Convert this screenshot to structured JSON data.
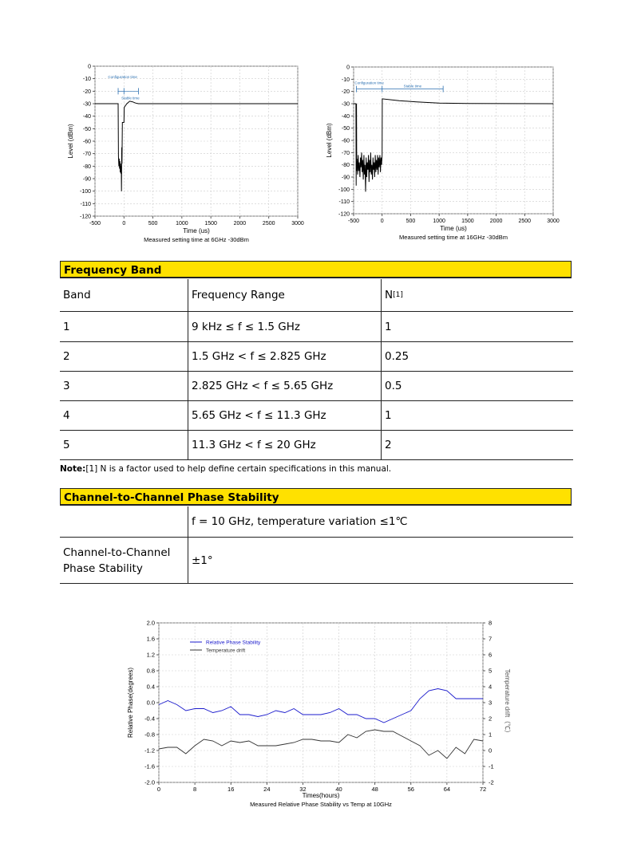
{
  "chart_data": [
    {
      "type": "line",
      "title": "Measured setting time at 6GHz -30dBm",
      "xlabel": "Time (us)",
      "ylabel": "Level (dBm)",
      "xlim": [
        -500,
        3000
      ],
      "ylim": [
        -120,
        0
      ],
      "xticks": [
        -500,
        0,
        500,
        1000,
        1500,
        2000,
        2500,
        3000
      ],
      "yticks": [
        0,
        -10,
        -20,
        -30,
        -40,
        -50,
        -60,
        -70,
        -80,
        -90,
        -100,
        -110,
        -120
      ],
      "grid": true,
      "annotations": {
        "config": "Configuration time",
        "stable": "Stable time",
        "config_range": [
          -100,
          0
        ],
        "stable_range": [
          0,
          250
        ],
        "level": -20
      },
      "series": [
        {
          "color": "#000000",
          "x": [
            -500,
            -100,
            -95,
            -88,
            -82,
            -76,
            -70,
            -64,
            -58,
            -52,
            -46,
            -42,
            -38,
            -34,
            -28,
            -22,
            0,
            5,
            20,
            50,
            100,
            150,
            200,
            250,
            300,
            3000
          ],
          "y": [
            -30,
            -30,
            -72,
            -80,
            -74,
            -82,
            -76,
            -85,
            -78,
            -86,
            -80,
            -100,
            -65,
            -78,
            -45,
            -45,
            -45,
            -33,
            -32,
            -30,
            -28,
            -28.5,
            -29.5,
            -30,
            -30,
            -30
          ]
        }
      ]
    },
    {
      "type": "line",
      "title": "Measured setting time at 16GHz -30dBm",
      "xlabel": "Time (us)",
      "ylabel": "Level (dBm)",
      "xlim": [
        -500,
        3000
      ],
      "ylim": [
        -120,
        0
      ],
      "xticks": [
        -500,
        0,
        500,
        1000,
        1500,
        2000,
        2500,
        3000
      ],
      "yticks": [
        0,
        -10,
        -20,
        -30,
        -40,
        -50,
        -60,
        -70,
        -80,
        -90,
        -100,
        -110,
        -120
      ],
      "grid": true,
      "annotations": {
        "config": "Configuration time",
        "stable": "Stable time",
        "config_range": [
          -450,
          0
        ],
        "stable_range": [
          0,
          1070
        ],
        "level": -18
      },
      "series": [
        {
          "color": "#000000",
          "x": [
            -500,
            -460,
            -455,
            -450,
            -445,
            -440,
            -430,
            -420,
            -410,
            -400,
            -390,
            -380,
            -370,
            -360,
            -350,
            -340,
            -330,
            -320,
            -310,
            -300,
            -290,
            -280,
            -270,
            -260,
            -250,
            -240,
            -230,
            -220,
            -210,
            -200,
            -190,
            -180,
            -170,
            -160,
            -150,
            -140,
            -130,
            -120,
            -110,
            -100,
            -90,
            -80,
            -70,
            -60,
            -50,
            -40,
            -30,
            -20,
            -10,
            0,
            2,
            300,
            600,
            1000,
            1500,
            3000
          ],
          "y": [
            -30,
            -30,
            -97,
            -30,
            -85,
            -75,
            -88,
            -72,
            -85,
            -78,
            -90,
            -74,
            -82,
            -70,
            -86,
            -76,
            -92,
            -72,
            -88,
            -80,
            -102,
            -74,
            -90,
            -78,
            -84,
            -72,
            -94,
            -76,
            -86,
            -70,
            -88,
            -80,
            -92,
            -74,
            -84,
            -78,
            -90,
            -72,
            -86,
            -76,
            -84,
            -72,
            -88,
            -74,
            -82,
            -72,
            -86,
            -74,
            -80,
            -72,
            -26,
            -27.5,
            -28.5,
            -29.5,
            -29.8,
            -30
          ]
        }
      ]
    },
    {
      "type": "line",
      "title": "Measured Relative Phase Stability vs Temp at 10GHz",
      "xlabel": "Times(hours)",
      "ylabel": "Relative Phase(degrees)",
      "y2label": "Temperature drift（℃）",
      "xlim": [
        0,
        72
      ],
      "ylim": [
        -2.0,
        2.0
      ],
      "y2lim": [
        -2,
        8
      ],
      "xticks": [
        0,
        8,
        16,
        24,
        32,
        40,
        48,
        56,
        64,
        72
      ],
      "yticks": [
        "2.0",
        "1.6",
        "1.2",
        "0.8",
        "0.4",
        "0.0",
        "-0.4",
        "-0.8",
        "-1.2",
        "-1.6",
        "-2.0"
      ],
      "y2ticks": [
        8,
        7,
        6,
        5,
        4,
        3,
        2,
        1,
        0,
        -1,
        -2
      ],
      "grid": true,
      "legend": "top-left",
      "x": [
        0,
        2,
        4,
        6,
        8,
        10,
        12,
        14,
        16,
        18,
        20,
        22,
        24,
        26,
        28,
        30,
        32,
        34,
        36,
        38,
        40,
        42,
        44,
        46,
        48,
        50,
        52,
        54,
        56,
        58,
        60,
        62,
        64,
        66,
        68,
        70,
        72
      ],
      "series": [
        {
          "name": "Relative Phase Stability",
          "axis": "left",
          "color": "#1a1acc",
          "values": [
            -0.05,
            0.05,
            -0.05,
            -0.2,
            -0.15,
            -0.15,
            -0.25,
            -0.2,
            -0.1,
            -0.3,
            -0.3,
            -0.35,
            -0.3,
            -0.2,
            -0.25,
            -0.15,
            -0.3,
            -0.3,
            -0.3,
            -0.25,
            -0.15,
            -0.3,
            -0.3,
            -0.4,
            -0.4,
            -0.5,
            -0.4,
            -0.3,
            -0.2,
            0.1,
            0.3,
            0.35,
            0.3,
            0.1,
            0.1,
            0.1,
            0.1
          ]
        },
        {
          "name": "Temperature drift",
          "axis": "right",
          "color": "#333333",
          "values": [
            0.1,
            0.2,
            0.2,
            -0.2,
            0.3,
            0.7,
            0.6,
            0.3,
            0.6,
            0.5,
            0.6,
            0.3,
            0.3,
            0.3,
            0.4,
            0.5,
            0.7,
            0.7,
            0.6,
            0.6,
            0.5,
            1.0,
            0.8,
            1.2,
            1.3,
            1.2,
            1.2,
            0.9,
            0.6,
            0.3,
            -0.3,
            0.0,
            -0.5,
            0.2,
            -0.2,
            0.7,
            0.6
          ]
        }
      ]
    }
  ],
  "frequency_band": {
    "title": "Frequency Band",
    "headers": [
      "Band",
      "Frequency Range",
      "N",
      "[1]"
    ],
    "rows": [
      [
        "1",
        "9 kHz ≤ f ≤ 1.5 GHz",
        "1"
      ],
      [
        "2",
        "1.5 GHz < f ≤ 2.825 GHz",
        "0.25"
      ],
      [
        "3",
        "2.825 GHz < f ≤ 5.65 GHz",
        "0.5"
      ],
      [
        "4",
        "5.65 GHz < f ≤ 11.3 GHz",
        "1"
      ],
      [
        "5",
        "11.3 GHz < f ≤ 20 GHz",
        "2"
      ]
    ],
    "note_label": "Note:",
    "note_text": "[1] N is a factor used to help define certain specifications in this manual."
  },
  "phase_stability": {
    "title": "Channel-to-Channel Phase Stability",
    "condition": "f = 10 GHz, temperature variation ≤1℃",
    "label_line1": "Channel-to-Channel",
    "label_line2": "Phase Stability",
    "value": "±1°"
  }
}
